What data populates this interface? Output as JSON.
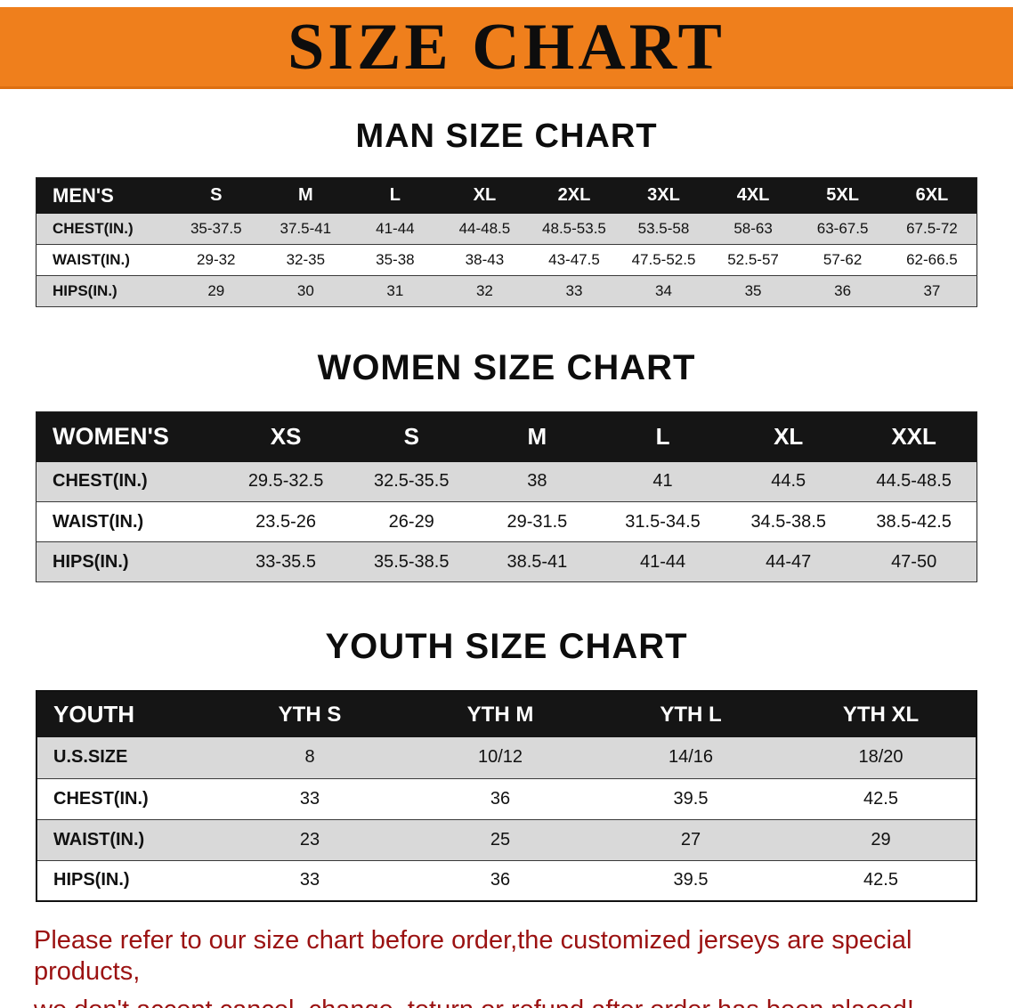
{
  "banner": {
    "title": "SIZE CHART",
    "bg_color": "#ef7f1c",
    "text_color": "#0d0d0d"
  },
  "sections": [
    {
      "id": "men",
      "heading": "MAN SIZE CHART",
      "header": [
        "MEN'S",
        "S",
        "M",
        "L",
        "XL",
        "2XL",
        "3XL",
        "4XL",
        "5XL",
        "6XL"
      ],
      "rows": [
        {
          "label": "CHEST(IN.)",
          "values": [
            "35-37.5",
            "37.5-41",
            "41-44",
            "44-48.5",
            "48.5-53.5",
            "53.5-58",
            "58-63",
            "63-67.5",
            "67.5-72"
          ]
        },
        {
          "label": "WAIST(IN.)",
          "values": [
            "29-32",
            "32-35",
            "35-38",
            "38-43",
            "43-47.5",
            "47.5-52.5",
            "52.5-57",
            "57-62",
            "62-66.5"
          ]
        },
        {
          "label": "HIPS(IN.)",
          "values": [
            "29",
            "30",
            "31",
            "32",
            "33",
            "34",
            "35",
            "36",
            "37"
          ]
        }
      ]
    },
    {
      "id": "women",
      "heading": "WOMEN SIZE CHART",
      "header": [
        "WOMEN'S",
        "XS",
        "S",
        "M",
        "L",
        "XL",
        "XXL"
      ],
      "rows": [
        {
          "label": "CHEST(IN.)",
          "values": [
            "29.5-32.5",
            "32.5-35.5",
            "38",
            "41",
            "44.5",
            "44.5-48.5"
          ]
        },
        {
          "label": "WAIST(IN.)",
          "values": [
            "23.5-26",
            "26-29",
            "29-31.5",
            "31.5-34.5",
            "34.5-38.5",
            "38.5-42.5"
          ]
        },
        {
          "label": "HIPS(IN.)",
          "values": [
            "33-35.5",
            "35.5-38.5",
            "38.5-41",
            "41-44",
            "44-47",
            "47-50"
          ]
        }
      ]
    },
    {
      "id": "youth",
      "heading": "YOUTH SIZE CHART",
      "header": [
        "YOUTH",
        "YTH S",
        "YTH M",
        "YTH L",
        "YTH XL"
      ],
      "rows": [
        {
          "label": "U.S.SIZE",
          "values": [
            "8",
            "10/12",
            "14/16",
            "18/20"
          ]
        },
        {
          "label": "CHEST(IN.)",
          "values": [
            "33",
            "36",
            "39.5",
            "42.5"
          ]
        },
        {
          "label": "WAIST(IN.)",
          "values": [
            "23",
            "25",
            "27",
            "29"
          ]
        },
        {
          "label": "HIPS(IN.)",
          "values": [
            "33",
            "36",
            "39.5",
            "42.5"
          ]
        }
      ]
    }
  ],
  "note": {
    "lines": [
      "Please refer to our size chart before order,the customized jerseys are special products,",
      "we don't accept cancel, change, teturn or refund after order has been placed!"
    ],
    "text_color": "#9b1212"
  }
}
